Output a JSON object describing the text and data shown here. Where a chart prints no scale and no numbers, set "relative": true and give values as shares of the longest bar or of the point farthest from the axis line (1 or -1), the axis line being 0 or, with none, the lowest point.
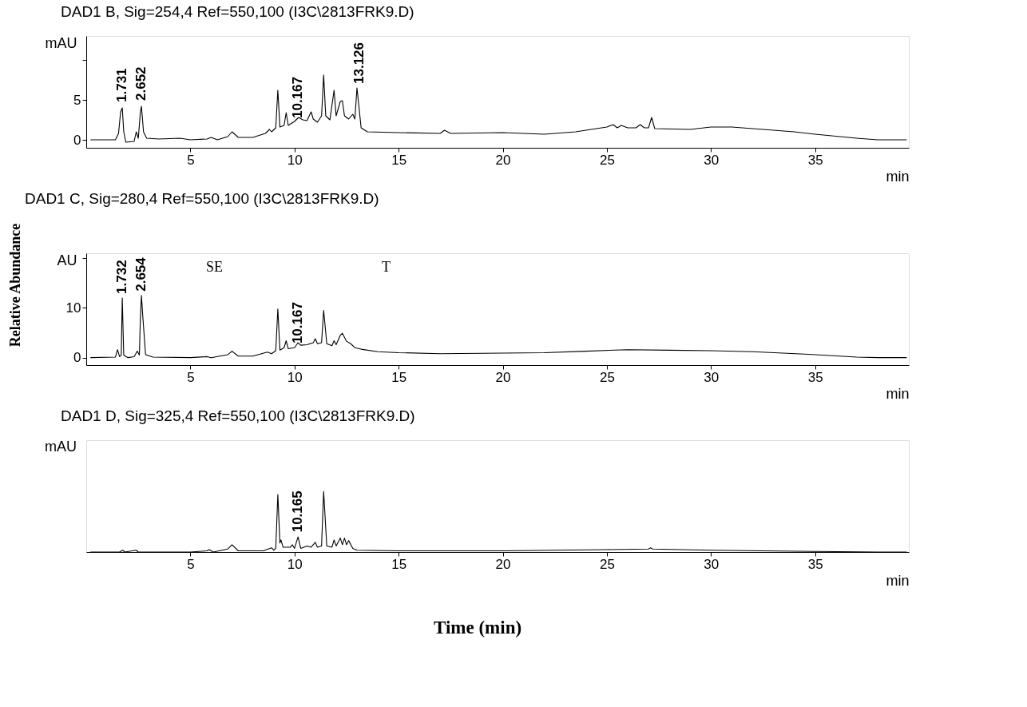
{
  "chart_data": [
    {
      "type": "line",
      "title": "DAD1 B, Sig=254,4 Ref=550,100 (I3C\\2813FRK9.D)",
      "ylabel": "mAU",
      "xlabel": "min",
      "xlim": [
        0,
        39.5
      ],
      "xticks": [
        5,
        10,
        15,
        20,
        25,
        30,
        35
      ],
      "ylim": [
        -1,
        13
      ],
      "yticks": [
        0,
        5,
        {
          "value": 10,
          "label": null
        }
      ],
      "x": [
        0.2,
        1.4,
        1.55,
        1.65,
        1.73,
        1.8,
        1.9,
        2.3,
        2.4,
        2.5,
        2.6,
        2.65,
        2.75,
        2.9,
        3.5,
        4.5,
        5.0,
        5.8,
        6.0,
        6.3,
        6.8,
        7.0,
        7.3,
        8.0,
        8.6,
        8.8,
        8.9,
        9.1,
        9.2,
        9.3,
        9.5,
        9.6,
        9.7,
        10.0,
        10.2,
        10.4,
        10.6,
        10.8,
        10.9,
        11.1,
        11.3,
        11.4,
        11.5,
        11.7,
        11.9,
        12.0,
        12.2,
        12.3,
        12.4,
        12.6,
        12.8,
        12.9,
        13.0,
        13.2,
        13.5,
        15,
        17,
        17.2,
        17.5,
        20,
        22,
        23.5,
        25,
        25.3,
        25.5,
        25.7,
        26,
        26.4,
        26.6,
        26.8,
        27.0,
        27.15,
        27.3,
        29,
        30,
        31,
        32,
        34,
        35,
        37,
        38,
        39.4
      ],
      "series": [
        {
          "color": "#000000",
          "values": [
            0,
            0,
            0.8,
            3.5,
            4.0,
            1.0,
            -0.3,
            -0.2,
            1.0,
            0.2,
            3.5,
            4.2,
            1.0,
            0.2,
            0.1,
            0.2,
            0,
            0.1,
            0.3,
            0,
            0.4,
            1.0,
            0.3,
            0.3,
            0.8,
            1.3,
            1.0,
            1.5,
            6.2,
            1.6,
            1.8,
            3.4,
            1.8,
            2.3,
            2.8,
            2.5,
            2.4,
            3.5,
            2.6,
            2.2,
            3.0,
            8.1,
            3.0,
            2.5,
            6.2,
            3.0,
            4.8,
            4.9,
            3.0,
            2.6,
            3.2,
            2.6,
            6.5,
            1.5,
            1.0,
            0.9,
            0.8,
            1.2,
            0.8,
            0.9,
            0.7,
            1.0,
            1.6,
            1.9,
            1.5,
            1.8,
            1.5,
            1.5,
            1.9,
            1.5,
            1.5,
            2.8,
            1.4,
            1.3,
            1.6,
            1.6,
            1.4,
            1.0,
            0.7,
            0.2,
            0,
            0
          ]
        }
      ],
      "annotations": [
        {
          "text": "1.731",
          "x": 1.731,
          "y": 4.5
        },
        {
          "text": "2.652",
          "x": 2.652,
          "y": 4.7
        },
        {
          "text": "10.167",
          "x": 10.167,
          "y": 2.5
        },
        {
          "text": "13.126",
          "x": 13.126,
          "y": 6.8
        }
      ]
    },
    {
      "type": "line",
      "title": "DAD1 C, Sig=280,4 Ref=550,100 (I3C\\2813FRK9.D)",
      "ylabel": "AU",
      "xlabel": "min",
      "xlim": [
        0,
        39.5
      ],
      "xticks": [
        5,
        10,
        15,
        20,
        25,
        30,
        35
      ],
      "ylim": [
        -1.5,
        21
      ],
      "yticks": [
        0,
        10,
        {
          "value": 20,
          "label": null
        }
      ],
      "x": [
        0.2,
        1.4,
        1.5,
        1.6,
        1.68,
        1.73,
        1.8,
        2.0,
        2.3,
        2.45,
        2.55,
        2.6,
        2.65,
        2.72,
        2.85,
        3.2,
        5.0,
        5.8,
        6.0,
        6.8,
        7.0,
        7.3,
        8.0,
        8.7,
        8.9,
        9.1,
        9.2,
        9.3,
        9.5,
        9.6,
        9.7,
        10.0,
        10.167,
        10.3,
        10.6,
        10.9,
        11.0,
        11.1,
        11.3,
        11.4,
        11.55,
        11.8,
        11.9,
        12.0,
        12.2,
        12.3,
        12.5,
        12.7,
        12.9,
        13.2,
        14,
        15,
        17,
        20,
        22,
        24,
        26,
        28,
        30,
        32,
        35,
        37,
        38,
        39.4
      ],
      "series": [
        {
          "color": "#000000",
          "values": [
            0,
            0.1,
            1.6,
            0.2,
            0.5,
            12,
            0.5,
            0,
            0.2,
            1.3,
            0.5,
            8,
            12.5,
            8,
            0.6,
            0.1,
            0,
            0.2,
            0,
            0.6,
            1.3,
            0.3,
            0.3,
            1.1,
            0.8,
            1.4,
            9.8,
            1.5,
            2.0,
            3.4,
            1.8,
            2.0,
            3.0,
            2.5,
            2.6,
            3.0,
            3.8,
            2.8,
            3.0,
            9.5,
            2.8,
            2.4,
            3.4,
            2.6,
            4.5,
            4.9,
            3.3,
            2.8,
            2.0,
            1.7,
            1.2,
            1.0,
            0.8,
            0.9,
            1.0,
            1.3,
            1.6,
            1.5,
            1.4,
            1.2,
            0.6,
            0.1,
            0,
            0
          ]
        }
      ],
      "annotations": [
        {
          "text": "1.732",
          "x": 1.732,
          "y": 12.5
        },
        {
          "text": "2.654",
          "x": 2.654,
          "y": 13
        },
        {
          "text": "10.167",
          "x": 10.167,
          "y": 2.5
        },
        "SE",
        "T",
        "Relative Abundance"
      ]
    },
    {
      "type": "line",
      "title": "DAD1 D, Sig=325,4 Ref=550,100 (I3C\\2813FRK9.D)",
      "ylabel": "mAU",
      "xlabel": "min",
      "relative": true,
      "xlim": [
        0,
        39.5
      ],
      "xticks": [
        5,
        10,
        15,
        20,
        25,
        30,
        35
      ],
      "x": [
        0.2,
        1.6,
        1.75,
        1.85,
        2.4,
        2.5,
        5.0,
        5.8,
        5.9,
        6.1,
        6.8,
        7.0,
        7.3,
        8.5,
        8.9,
        9.0,
        9.1,
        9.2,
        9.3,
        9.35,
        9.45,
        9.8,
        9.9,
        10.0,
        10.17,
        10.3,
        10.6,
        10.8,
        11.0,
        11.1,
        11.3,
        11.4,
        11.55,
        11.8,
        11.9,
        12.0,
        12.2,
        12.3,
        12.4,
        12.5,
        12.6,
        12.8,
        13.0,
        15,
        20,
        25,
        27,
        27.1,
        27.2,
        30,
        35,
        38,
        39.4
      ],
      "series": [
        {
          "color": "#000000",
          "values": [
            0,
            0,
            0.03,
            0,
            0.03,
            0,
            0,
            0.02,
            0.04,
            0,
            0.05,
            0.12,
            0.02,
            0.02,
            0.07,
            0.03,
            0.06,
            0.95,
            0.15,
            0.2,
            0.08,
            0.08,
            0.12,
            0.06,
            0.25,
            0.06,
            0.1,
            0.08,
            0.16,
            0.08,
            0.1,
            1.0,
            0.1,
            0.08,
            0.2,
            0.1,
            0.23,
            0.12,
            0.23,
            0.12,
            0.19,
            0.06,
            0.03,
            0.02,
            0.02,
            0.04,
            0.05,
            0.07,
            0.05,
            0.03,
            0.01,
            0,
            0
          ]
        }
      ],
      "annotations": [
        {
          "text": "10.165",
          "x": 10.165,
          "y": 0.3
        },
        "Time (min)"
      ]
    }
  ]
}
